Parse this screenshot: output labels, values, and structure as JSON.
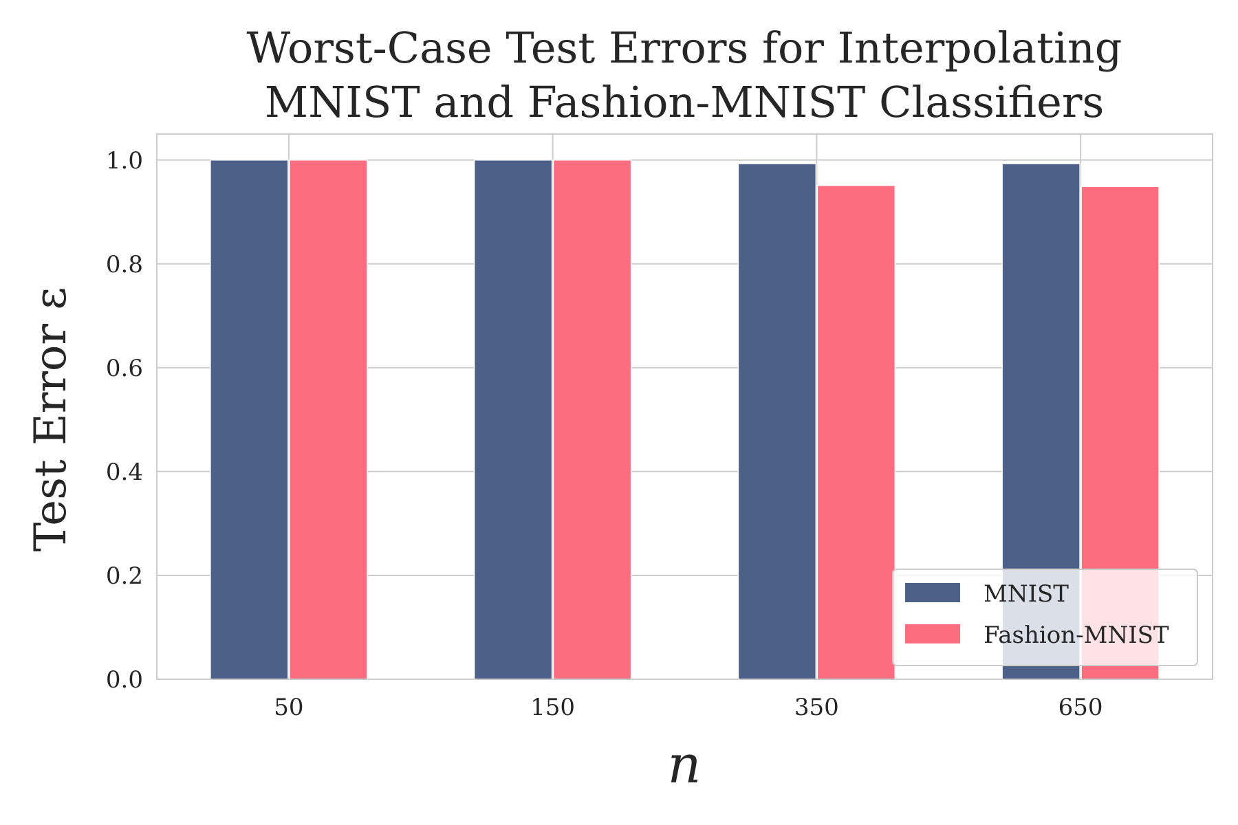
{
  "chart_data": {
    "type": "bar",
    "title_lines": [
      "Worst-Case Test Errors for Interpolating",
      "MNIST and Fashion-MNIST Classifiers"
    ],
    "xlabel": "n",
    "ylabel": "Test Error ε",
    "categories": [
      "50",
      "150",
      "350",
      "650"
    ],
    "series": [
      {
        "name": "MNIST",
        "color": "#4c6088",
        "values": [
          1.0,
          1.0,
          0.993,
          0.993
        ]
      },
      {
        "name": "Fashion-MNIST",
        "color": "#fc6e7f",
        "values": [
          1.0,
          1.0,
          0.951,
          0.949
        ]
      }
    ],
    "ylim": [
      0,
      1.05
    ],
    "yticks": [
      "0.0",
      "0.2",
      "0.4",
      "0.6",
      "0.8",
      "1.0"
    ],
    "grid": true,
    "legend_position": "lower-right"
  }
}
